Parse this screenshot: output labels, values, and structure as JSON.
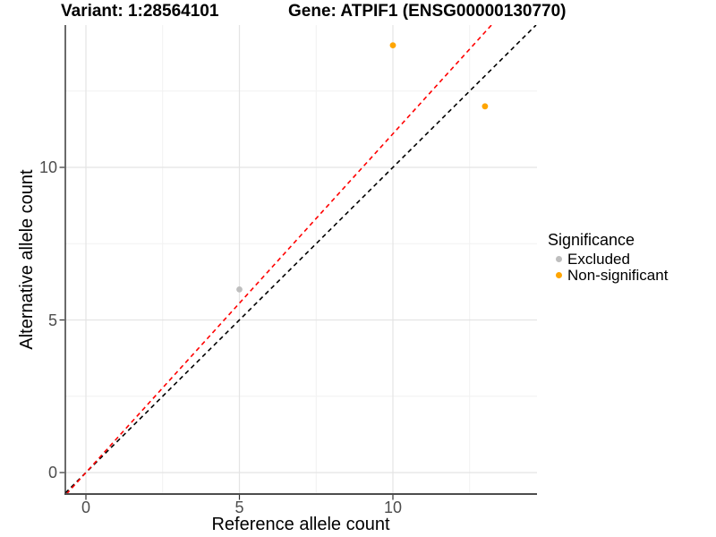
{
  "titles": {
    "variant": "Variant: 1:28564101",
    "gene": "Gene: ATPIF1 (ENSG00000130770)"
  },
  "chart_data": {
    "type": "scatter",
    "xlabel": "Reference allele count",
    "ylabel": "Alternative allele count",
    "xlim": [
      -0.67,
      14.69
    ],
    "ylim": [
      -0.7,
      14.66
    ],
    "xticks": {
      "values": [
        0,
        5,
        10
      ],
      "labels": [
        "0",
        "5",
        "10"
      ]
    },
    "yticks": {
      "values": [
        0,
        5,
        10
      ],
      "labels": [
        "0",
        "5",
        "10"
      ]
    },
    "minor_xticks": [
      2.5,
      7.5,
      12.5
    ],
    "minor_yticks": [
      2.5,
      7.5,
      12.5
    ],
    "grid": true,
    "points": [
      {
        "x": 5,
        "y": 6,
        "significance": "Excluded"
      },
      {
        "x": 10,
        "y": 14,
        "significance": "Non-significant"
      },
      {
        "x": 13,
        "y": 12,
        "significance": "Non-significant"
      }
    ],
    "lines": [
      {
        "name": "identity-line",
        "slope": 1,
        "intercept": 0,
        "color": "#000000",
        "style": "dashed"
      },
      {
        "name": "expected-ratio-line",
        "slope": 1.11,
        "intercept": 0,
        "color": "#FF0000",
        "style": "dashed"
      }
    ],
    "legend": {
      "title": "Significance",
      "position": "right",
      "items": [
        {
          "label": "Excluded",
          "color": "#BEBEBE"
        },
        {
          "label": "Non-significant",
          "color": "#FFA500"
        }
      ]
    },
    "colors": {
      "background": "#FFFFFF",
      "grid_major": "#E4E4E4",
      "grid_minor": "#F1F1F1",
      "axis_left": "#1A1A1A",
      "axis_bottom": "#4D4D4D",
      "tick_mark": "#333333",
      "tick_text": "#4D4D4D"
    }
  }
}
